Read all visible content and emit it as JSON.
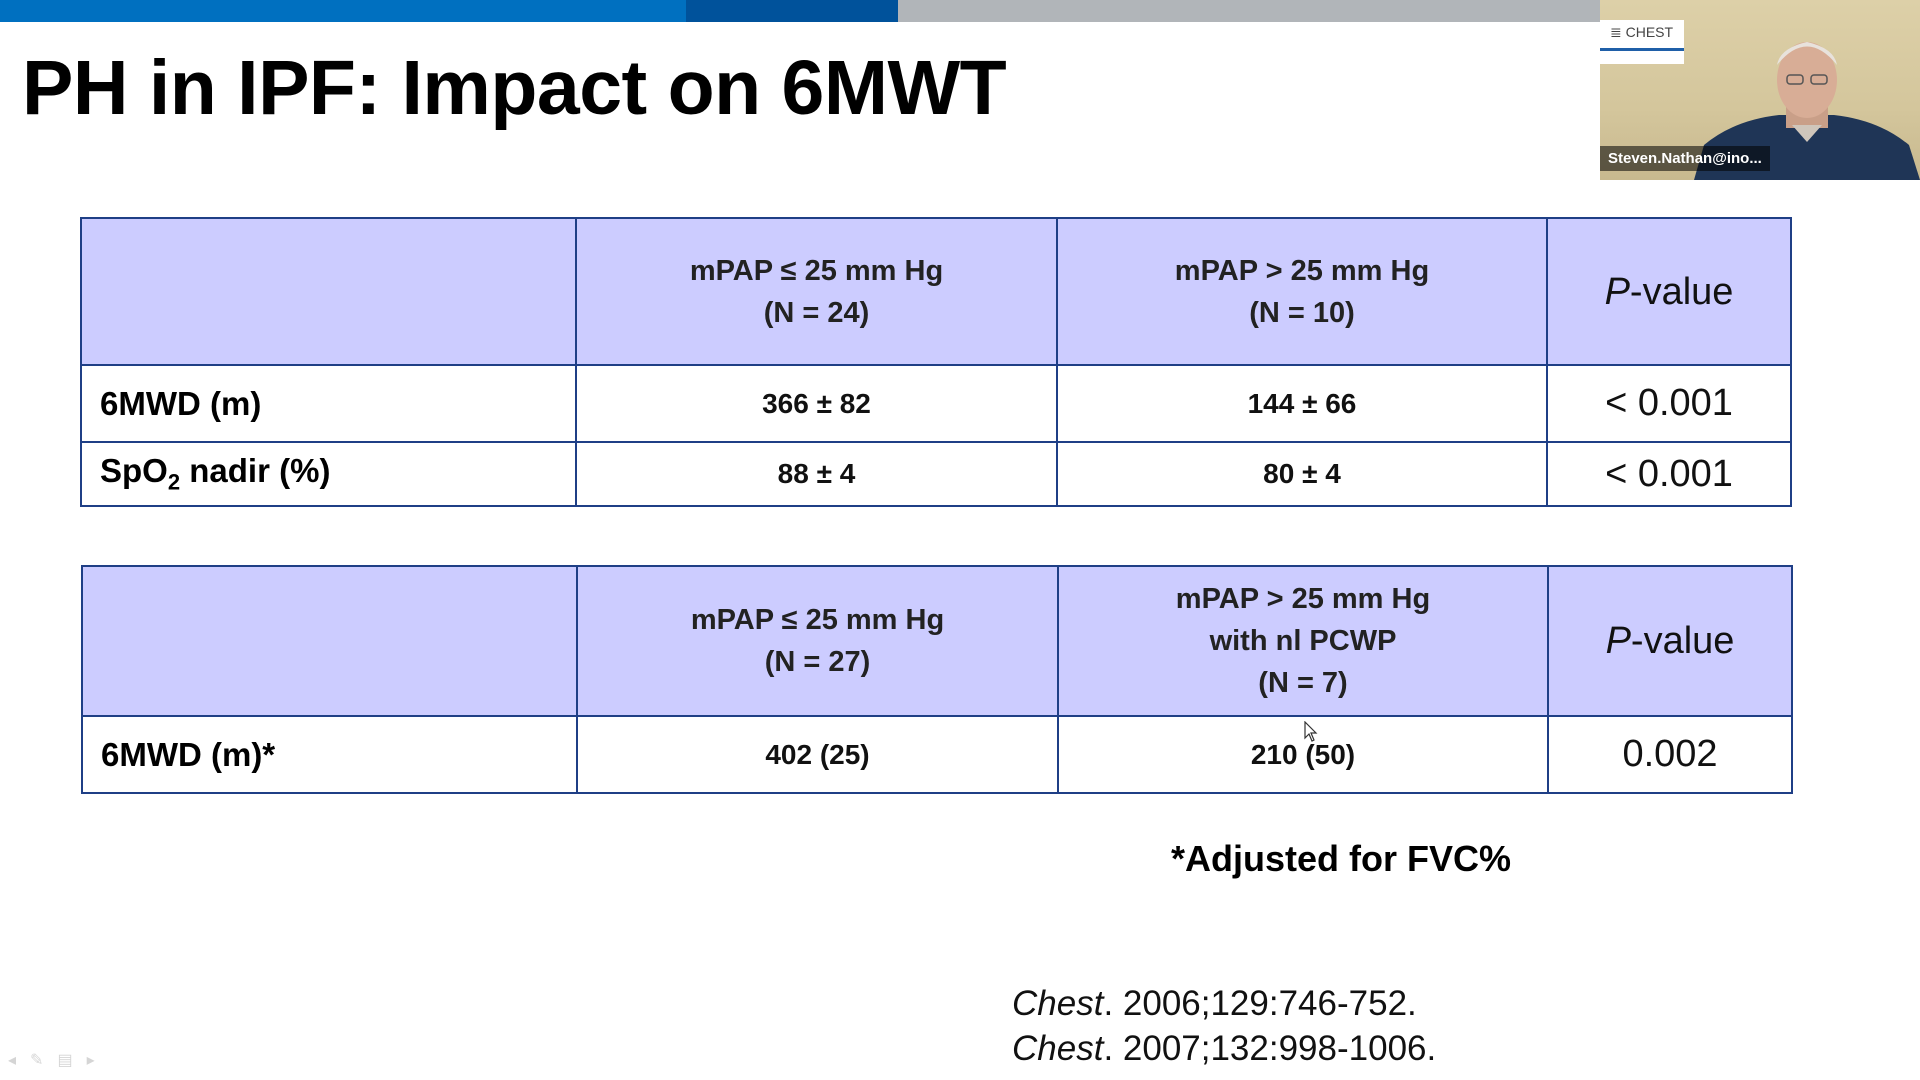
{
  "slide": {
    "title": "PH in IPF: Impact on 6MWT"
  },
  "table1": {
    "header": [
      "",
      "mPAP ≤ 25 mm Hg",
      "(N = 24)",
      "mPAP > 25 mm Hg",
      "(N = 10)",
      "-value"
    ],
    "p_italic": "P",
    "rows": [
      {
        "label": "6MWD (m)",
        "c1": "366 ± 82",
        "c2": "144 ± 66",
        "p": "< 0.001"
      },
      {
        "label_main": "SpO",
        "label_sub": "2",
        "label_rest": " nadir (%)",
        "c1": "88 ± 4",
        "c2": "80 ± 4",
        "p": "< 0.001"
      }
    ]
  },
  "table2": {
    "col1_line1": "mPAP ≤ 25 mm Hg",
    "col1_line2": "(N = 27)",
    "col2_line1": "mPAP > 25 mm Hg",
    "col2_line2": "with nl PCWP",
    "col2_line3": "(N = 7)",
    "p_italic": "P",
    "p_rest": "-value",
    "row": {
      "label": "6MWD (m)*",
      "c1": "402 (25)",
      "c2": "210 (50)",
      "p": "0.002"
    }
  },
  "footnote": "*Adjusted for FVC%",
  "references": [
    {
      "journal": "Chest",
      "rest": ". 2006;129:746-752."
    },
    {
      "journal": "Chest",
      "rest": ". 2007;132:998-1006."
    }
  ],
  "webcam": {
    "logo": "CHEST",
    "participant_name": "Steven.Nathan@ino..."
  },
  "colors": {
    "header_fill": "#ccccff",
    "border": "#1f3f86",
    "topbar_blue": "#0070c0",
    "topbar_dark": "#00529b",
    "topbar_gray": "#b1b5b9"
  }
}
